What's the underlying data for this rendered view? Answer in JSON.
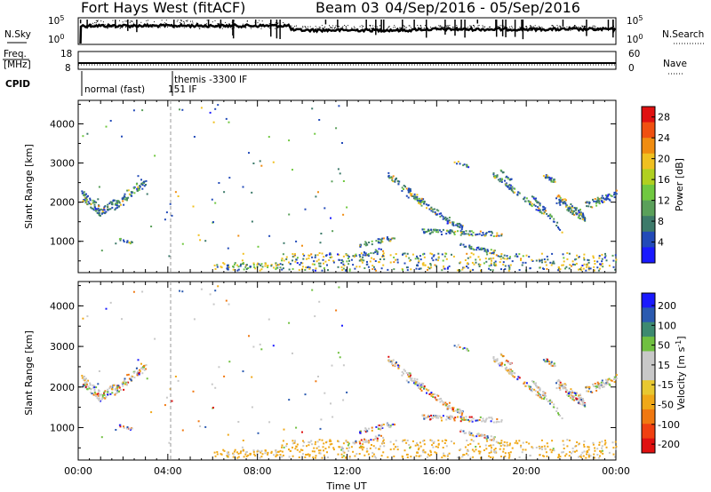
{
  "header": {
    "title": "Fort Hays West (fitACF)",
    "beam": "Beam 03",
    "date_range": "04/Sep/2016 - 05/Sep/2016"
  },
  "top_panels": {
    "nsky": {
      "left_label": "N.Sky",
      "ticks": [
        "10^5",
        "10^0"
      ],
      "right_label": "N.Search",
      "right_ticks": [
        "10^5",
        "10^0"
      ]
    },
    "freq": {
      "left_label_1": "Freq.",
      "left_label_2": "[MHz]",
      "ticks": [
        "18",
        "8"
      ],
      "right_label": "Nave",
      "right_ticks": [
        "60",
        "0"
      ]
    },
    "cpid": {
      "label": "CPID",
      "mode_1": "normal (fast)",
      "mode_1_cpid": "151 IF",
      "mode_2": "themis -3300 IF"
    }
  },
  "colors": {
    "power_scale": [
      "#1a1aff",
      "#224ab8",
      "#3d7a6a",
      "#5aa05a",
      "#70c840",
      "#b0d020",
      "#f0c020",
      "#f08c10",
      "#f05010",
      "#e01010"
    ],
    "velocity_scale": [
      "#e01010",
      "#f04010",
      "#f07810",
      "#f0a818",
      "#e8c830",
      "#c8c8c8",
      "#c8c8c8",
      "#70c040",
      "#3d8a70",
      "#2a5ab0",
      "#1a1aff"
    ]
  },
  "chart_data": [
    {
      "type": "scatter",
      "panel": "power",
      "ylabel": "Slant Range [km]",
      "yticks": [
        "1000",
        "2000",
        "3000",
        "4000"
      ],
      "ylim": [
        200,
        4600
      ],
      "xticks": [
        "00:00",
        "04:00",
        "08:00",
        "12:00",
        "16:00",
        "20:00",
        "00:00"
      ],
      "xlim_hours": [
        0,
        24
      ],
      "colorbar_label": "Power [dB]",
      "colorbar_ticks": [
        "4",
        "8",
        "12",
        "16",
        "20",
        "24",
        "28"
      ],
      "colorbar_range": [
        0,
        30
      ]
    },
    {
      "type": "scatter",
      "panel": "velocity",
      "ylabel": "Slant Range [km]",
      "yticks": [
        "1000",
        "2000",
        "3000",
        "4000"
      ],
      "ylim": [
        200,
        4600
      ],
      "xticks": [
        "00:00",
        "04:00",
        "08:00",
        "12:00",
        "16:00",
        "20:00",
        "00:00"
      ],
      "xlim_hours": [
        0,
        24
      ],
      "xlabel": "Time UT",
      "colorbar_label": "Velocity [m s^-1]",
      "colorbar_ticks": [
        "200",
        "100",
        "50",
        "15",
        "-15",
        "-50",
        "-100",
        "-200"
      ]
    }
  ]
}
